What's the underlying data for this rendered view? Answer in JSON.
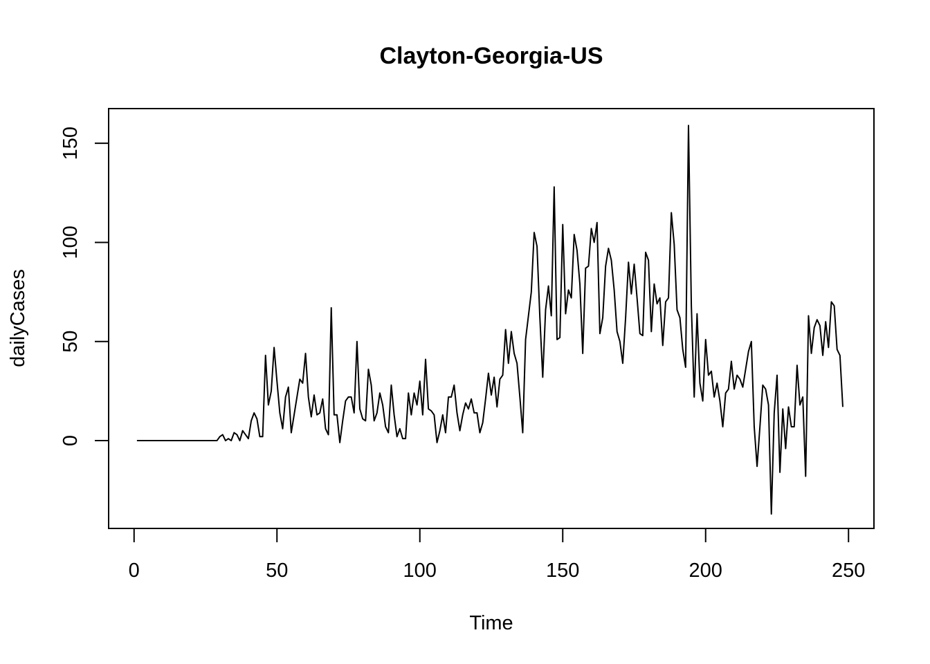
{
  "chart_data": {
    "type": "line",
    "title": "Clayton-Georgia-US",
    "xlabel": "Time",
    "ylabel": "dailyCases",
    "xlim": [
      -8.9,
      258.9
    ],
    "ylim": [
      -44.3,
      167.5
    ],
    "xticks": [
      0,
      50,
      100,
      150,
      200,
      250
    ],
    "yticks": [
      0,
      50,
      100,
      150
    ],
    "grid": false,
    "legend": "none",
    "line_color": "#000000",
    "series": [
      {
        "x_start": 1,
        "values": [
          0,
          0,
          0,
          0,
          0,
          0,
          0,
          0,
          0,
          0,
          0,
          0,
          0,
          0,
          0,
          0,
          0,
          0,
          0,
          0,
          0,
          0,
          0,
          0,
          0,
          0,
          0,
          0,
          0,
          2,
          3,
          0,
          1,
          0,
          4,
          3,
          0,
          5,
          3,
          1,
          10,
          14,
          11,
          2,
          2,
          43,
          18,
          25,
          47,
          30,
          14,
          6,
          22,
          27,
          4,
          13,
          22,
          31,
          29,
          44,
          22,
          12,
          23,
          13,
          14,
          21,
          6,
          3,
          67,
          13,
          13,
          -1,
          10,
          20,
          22,
          22,
          14,
          50,
          16,
          11,
          10,
          36,
          28,
          10,
          14,
          24,
          18,
          7,
          4,
          28,
          13,
          2,
          6,
          1,
          1,
          24,
          13,
          24,
          18,
          30,
          13,
          41,
          16,
          15,
          13,
          -1,
          5,
          13,
          4,
          22,
          22,
          28,
          14,
          5,
          13,
          19,
          16,
          21,
          14,
          14,
          4,
          9,
          21,
          34,
          23,
          32,
          17,
          31,
          33,
          56,
          39,
          55,
          44,
          39,
          22,
          4,
          51,
          63,
          75,
          105,
          98,
          62,
          32,
          66,
          78,
          63,
          128,
          51,
          52,
          109,
          64,
          76,
          72,
          104,
          96,
          79,
          44,
          87,
          88,
          107,
          100,
          110,
          54,
          62,
          88,
          97,
          91,
          76,
          55,
          50,
          39,
          62,
          90,
          74,
          89,
          72,
          54,
          53,
          95,
          91,
          55,
          79,
          69,
          72,
          48,
          70,
          72,
          115,
          99,
          66,
          62,
          46,
          37,
          159,
          68,
          22,
          64,
          29,
          20,
          51,
          33,
          35,
          22,
          29,
          20,
          7,
          24,
          26,
          40,
          26,
          33,
          31,
          27,
          36,
          45,
          50,
          7,
          -13,
          7,
          28,
          26,
          18,
          -37,
          14,
          33,
          -16,
          16,
          -4,
          17,
          7,
          7,
          38,
          18,
          22,
          -18,
          63,
          44,
          57,
          61,
          58,
          43,
          60,
          47,
          70,
          68,
          46,
          43,
          17
        ]
      }
    ]
  }
}
